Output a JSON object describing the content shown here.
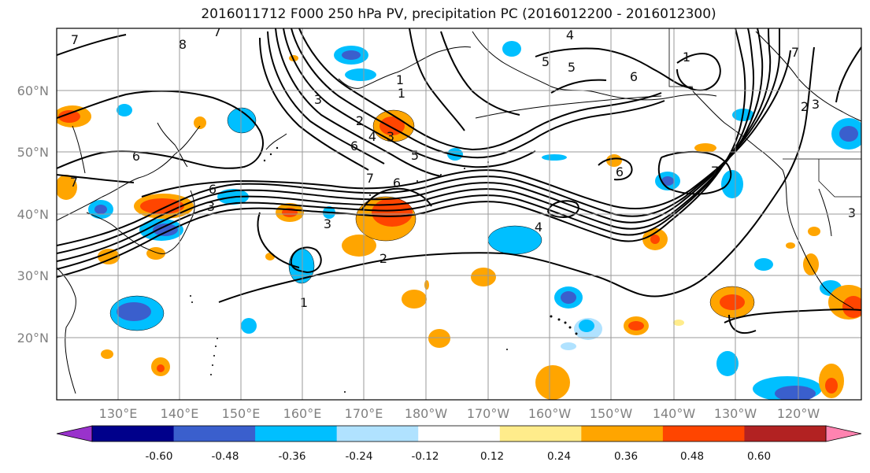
{
  "title": "2016011712 F000 250 hPa PV, precipitation PC (2016012200 - 2016012300)",
  "lat_ticks": [
    "60°N",
    "50°N",
    "40°N",
    "30°N",
    "20°N"
  ],
  "lon_ticks": [
    "130°E",
    "140°E",
    "150°E",
    "160°E",
    "170°E",
    "180°W",
    "170°W",
    "160°W",
    "150°W",
    "140°W",
    "130°W",
    "120°W"
  ],
  "colorbar": {
    "colors": [
      "#9932cc",
      "#00008b",
      "#3a5fcd",
      "#00bfff",
      "#b0e2ff",
      "#ffffff",
      "#ffec8b",
      "#ffa500",
      "#ff4500",
      "#b22222",
      "#ff83b0"
    ],
    "tick_labels": [
      "-0.60",
      "-0.48",
      "-0.36",
      "-0.24",
      "-0.12",
      "0.12",
      "0.24",
      "0.36",
      "0.48",
      "0.60"
    ]
  },
  "contour_labels": [
    "7",
    "8",
    "7",
    "4",
    "5",
    "6",
    "1",
    "7",
    "1",
    "2",
    "3",
    "2",
    "4",
    "5",
    "6",
    "3",
    "5",
    "6",
    "7",
    "7",
    "6",
    "3",
    "7",
    "6",
    "6",
    "3",
    "3",
    "4",
    "2",
    "1",
    "1",
    "3"
  ]
}
